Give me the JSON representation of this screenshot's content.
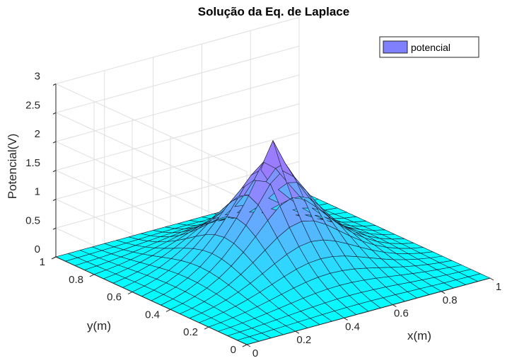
{
  "chart_data": {
    "type": "surface",
    "title": "Solução da Eq. de Laplace",
    "xlabel": "x(m)",
    "ylabel": "y(m)",
    "zlabel": "Potencial(V)",
    "xlim": [
      0,
      1
    ],
    "ylim": [
      0,
      1
    ],
    "zlim": [
      0,
      3
    ],
    "x_ticks": [
      "0",
      "0.2",
      "0.4",
      "0.6",
      "0.8",
      "1"
    ],
    "y_ticks": [
      "0",
      "0.2",
      "0.4",
      "0.6",
      "0.8",
      "1"
    ],
    "z_ticks": [
      "0",
      "0.5",
      "1",
      "1.5",
      "2",
      "2.5",
      "3"
    ],
    "grid": true,
    "mesh_size": 21,
    "peak": {
      "x": 0.5,
      "y": 0.5,
      "z": 2.2
    },
    "boundary_value": 0,
    "colormap": "cool",
    "colors": {
      "low": "#00ffff",
      "high": "#9a7dff",
      "edge": "#1a1a2e"
    },
    "legend": {
      "position": "top-right",
      "entries": [
        {
          "label": "potencial",
          "color": "#8080ff"
        }
      ]
    }
  }
}
